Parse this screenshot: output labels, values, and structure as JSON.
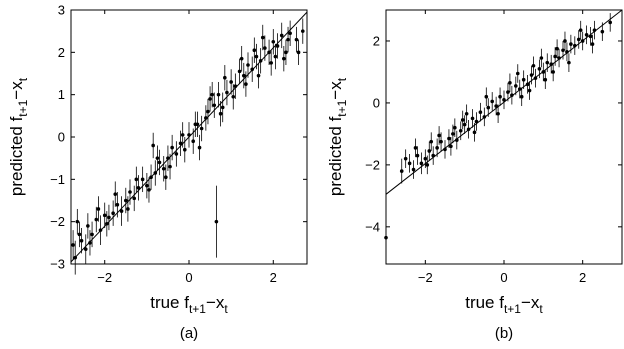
{
  "chart_data": [
    {
      "type": "scatter",
      "caption": "(a)",
      "xlabel": {
        "main": "true f",
        "sub": "t+1",
        "mid": "−x",
        "sub2": "t"
      },
      "ylabel": {
        "main": "predicted f",
        "sub": "t+1",
        "mid": "−x",
        "sub2": "t"
      },
      "xlim": [
        -2.8,
        2.8
      ],
      "ylim": [
        -3,
        3
      ],
      "xticks": [
        -2,
        0,
        2
      ],
      "xtick_labels": [
        "−2",
        "0",
        "2"
      ],
      "yticks": [
        -3,
        -2,
        -1,
        0,
        1,
        2,
        3
      ],
      "ytick_labels": [
        "−3",
        "−2",
        "−1",
        "0",
        "1",
        "2",
        "3"
      ],
      "fit_line": {
        "x": [
          -2.8,
          2.8
        ],
        "y": [
          -2.95,
          2.95
        ]
      },
      "series": [
        {
          "points": [
            [
              -2.75,
              -2.55,
              0.35
            ],
            [
              -2.7,
              -2.85,
              0.4
            ],
            [
              -2.6,
              -2.3,
              0.3
            ],
            [
              -2.55,
              -2.45,
              0.3
            ],
            [
              -2.45,
              -2.65,
              0.35
            ],
            [
              -2.4,
              -2.1,
              0.3
            ],
            [
              -2.3,
              -2.3,
              0.3
            ],
            [
              -2.2,
              -1.95,
              0.3
            ],
            [
              -2.1,
              -2.2,
              0.35
            ],
            [
              -2.0,
              -1.85,
              0.3
            ],
            [
              -1.9,
              -1.9,
              0.3
            ],
            [
              -1.8,
              -1.8,
              0.3
            ],
            [
              -1.7,
              -1.6,
              0.3
            ],
            [
              -1.6,
              -1.75,
              0.35
            ],
            [
              -1.5,
              -1.5,
              0.3
            ],
            [
              -1.4,
              -1.3,
              0.3
            ],
            [
              -1.3,
              -1.45,
              0.3
            ],
            [
              -1.2,
              -1.2,
              0.3
            ],
            [
              -1.1,
              -1.0,
              0.3
            ],
            [
              -1.0,
              -1.15,
              0.3
            ],
            [
              -0.9,
              -0.95,
              0.3
            ],
            [
              -0.8,
              -0.85,
              0.3
            ],
            [
              -0.7,
              -0.6,
              0.3
            ],
            [
              -0.6,
              -0.75,
              0.3
            ],
            [
              -0.5,
              -0.5,
              0.3
            ],
            [
              -0.4,
              -0.25,
              0.3
            ],
            [
              -0.3,
              -0.4,
              0.3
            ],
            [
              -0.2,
              -0.15,
              0.3
            ],
            [
              -0.1,
              -0.3,
              0.3
            ],
            [
              0.0,
              0.05,
              0.3
            ],
            [
              0.1,
              -0.1,
              0.3
            ],
            [
              0.2,
              0.3,
              0.3
            ],
            [
              0.3,
              0.2,
              0.3
            ],
            [
              0.4,
              0.45,
              0.3
            ],
            [
              0.5,
              0.9,
              0.3
            ],
            [
              0.6,
              0.75,
              0.3
            ],
            [
              0.7,
              1.0,
              0.3
            ],
            [
              0.8,
              0.7,
              0.35
            ],
            [
              0.9,
              1.05,
              0.3
            ],
            [
              1.0,
              1.3,
              0.3
            ],
            [
              1.1,
              1.2,
              0.3
            ],
            [
              1.2,
              1.55,
              0.3
            ],
            [
              1.3,
              1.45,
              0.3
            ],
            [
              1.4,
              1.7,
              0.3
            ],
            [
              1.5,
              1.6,
              0.3
            ],
            [
              1.6,
              1.9,
              0.3
            ],
            [
              1.7,
              1.8,
              0.3
            ],
            [
              1.8,
              2.1,
              0.3
            ],
            [
              1.9,
              2.0,
              0.3
            ],
            [
              2.0,
              2.25,
              0.3
            ],
            [
              2.1,
              2.15,
              0.3
            ],
            [
              2.2,
              2.4,
              0.3
            ],
            [
              2.3,
              2.0,
              0.3
            ],
            [
              2.4,
              2.45,
              0.3
            ],
            [
              2.55,
              2.3,
              0.3
            ],
            [
              2.7,
              2.5,
              0.3
            ],
            [
              0.65,
              -2.0,
              0.85
            ],
            [
              -2.65,
              -2.0,
              0.3
            ],
            [
              -2.35,
              -2.5,
              0.3
            ],
            [
              -2.15,
              -1.7,
              0.3
            ],
            [
              -1.95,
              -2.05,
              0.3
            ],
            [
              -1.75,
              -1.35,
              0.3
            ],
            [
              -1.45,
              -1.7,
              0.3
            ],
            [
              -1.25,
              -1.0,
              0.3
            ],
            [
              -0.95,
              -1.25,
              0.3
            ],
            [
              -0.75,
              -0.5,
              0.3
            ],
            [
              -0.45,
              -0.7,
              0.3
            ],
            [
              -0.15,
              0.05,
              0.3
            ],
            [
              0.15,
              0.3,
              0.3
            ],
            [
              0.45,
              0.6,
              0.3
            ],
            [
              0.75,
              0.55,
              0.3
            ],
            [
              1.05,
              0.95,
              0.3
            ],
            [
              1.35,
              1.25,
              0.3
            ],
            [
              1.65,
              1.45,
              0.3
            ],
            [
              1.95,
              1.75,
              0.3
            ],
            [
              2.25,
              1.85,
              0.3
            ],
            [
              2.6,
              2.0,
              0.3
            ],
            [
              -0.85,
              -0.2,
              0.3
            ],
            [
              -0.55,
              -0.95,
              0.3
            ],
            [
              0.25,
              -0.25,
              0.3
            ],
            [
              0.85,
              1.4,
              0.3
            ],
            [
              1.75,
              2.35,
              0.3
            ],
            [
              2.05,
              1.9,
              0.3
            ],
            [
              2.35,
              2.3,
              0.3
            ],
            [
              1.55,
              2.05,
              0.3
            ],
            [
              1.25,
              1.85,
              0.3
            ],
            [
              0.55,
              1.0,
              0.3
            ]
          ]
        }
      ]
    },
    {
      "type": "scatter",
      "caption": "(b)",
      "xlabel": {
        "main": "true f",
        "sub": "t+1",
        "mid": "−x",
        "sub2": "t"
      },
      "ylabel": {
        "main": "predicted f",
        "sub": "t+1",
        "mid": "−x",
        "sub2": "t"
      },
      "xlim": [
        -3,
        3
      ],
      "ylim": [
        -5.2,
        3.0
      ],
      "xticks": [
        -2,
        0,
        2
      ],
      "xtick_labels": [
        "−2",
        "0",
        "2"
      ],
      "yticks": [
        -4,
        -2,
        0,
        2
      ],
      "ytick_labels": [
        "−4",
        "−2",
        "0",
        "2"
      ],
      "fit_line": {
        "x": [
          -3,
          3
        ],
        "y": [
          -2.95,
          3.0
        ]
      },
      "series": [
        {
          "points": [
            [
              -3.0,
              -4.35,
              0.2
            ],
            [
              -2.6,
              -2.2,
              0.4
            ],
            [
              -2.4,
              -1.95,
              0.3
            ],
            [
              -2.3,
              -2.15,
              0.3
            ],
            [
              -2.2,
              -1.7,
              0.3
            ],
            [
              -2.1,
              -1.95,
              0.35
            ],
            [
              -2.0,
              -1.8,
              0.3
            ],
            [
              -1.9,
              -1.55,
              0.3
            ],
            [
              -1.8,
              -1.7,
              0.3
            ],
            [
              -1.7,
              -1.45,
              0.3
            ],
            [
              -1.6,
              -1.25,
              0.3
            ],
            [
              -1.5,
              -1.5,
              0.3
            ],
            [
              -1.4,
              -1.15,
              0.3
            ],
            [
              -1.3,
              -1.0,
              0.3
            ],
            [
              -1.2,
              -1.2,
              0.3
            ],
            [
              -1.1,
              -0.9,
              0.3
            ],
            [
              -1.0,
              -0.7,
              0.3
            ],
            [
              -0.9,
              -0.85,
              0.3
            ],
            [
              -0.8,
              -0.5,
              0.3
            ],
            [
              -0.7,
              -0.6,
              0.3
            ],
            [
              -0.6,
              -0.3,
              0.3
            ],
            [
              -0.5,
              -0.45,
              0.3
            ],
            [
              -0.4,
              -0.15,
              0.3
            ],
            [
              -0.3,
              0.05,
              0.3
            ],
            [
              -0.2,
              -0.1,
              0.3
            ],
            [
              -0.1,
              0.2,
              0.3
            ],
            [
              0.0,
              0.1,
              0.3
            ],
            [
              0.1,
              0.35,
              0.3
            ],
            [
              0.2,
              0.25,
              0.3
            ],
            [
              0.3,
              0.55,
              0.3
            ],
            [
              0.4,
              0.45,
              0.3
            ],
            [
              0.5,
              0.75,
              0.3
            ],
            [
              0.6,
              0.6,
              0.3
            ],
            [
              0.7,
              0.9,
              0.3
            ],
            [
              0.8,
              0.8,
              0.3
            ],
            [
              0.9,
              1.1,
              0.3
            ],
            [
              1.0,
              1.0,
              0.3
            ],
            [
              1.1,
              1.3,
              0.3
            ],
            [
              1.2,
              1.25,
              0.3
            ],
            [
              1.3,
              1.5,
              0.3
            ],
            [
              1.4,
              1.45,
              0.3
            ],
            [
              1.5,
              1.7,
              0.3
            ],
            [
              1.6,
              1.65,
              0.3
            ],
            [
              1.7,
              1.9,
              0.3
            ],
            [
              1.8,
              1.85,
              0.3
            ],
            [
              1.9,
              2.05,
              0.3
            ],
            [
              2.0,
              2.0,
              0.3
            ],
            [
              2.1,
              2.2,
              0.3
            ],
            [
              2.2,
              2.15,
              0.3
            ],
            [
              2.3,
              2.35,
              0.3
            ],
            [
              2.5,
              2.3,
              0.3
            ],
            [
              2.7,
              2.6,
              0.3
            ],
            [
              -2.5,
              -1.8,
              0.3
            ],
            [
              -2.25,
              -1.45,
              0.3
            ],
            [
              -1.95,
              -2.0,
              0.3
            ],
            [
              -1.65,
              -1.05,
              0.3
            ],
            [
              -1.35,
              -1.4,
              0.3
            ],
            [
              -1.05,
              -0.55,
              0.3
            ],
            [
              -0.75,
              -0.95,
              0.3
            ],
            [
              -0.45,
              0.2,
              0.3
            ],
            [
              -0.15,
              -0.35,
              0.3
            ],
            [
              0.15,
              0.65,
              0.3
            ],
            [
              0.45,
              0.2,
              0.3
            ],
            [
              0.75,
              1.2,
              0.3
            ],
            [
              1.05,
              0.75,
              0.3
            ],
            [
              1.35,
              1.75,
              0.3
            ],
            [
              1.65,
              1.3,
              0.3
            ],
            [
              1.95,
              2.35,
              0.3
            ],
            [
              2.25,
              1.9,
              0.3
            ],
            [
              0.95,
              1.45,
              0.3
            ],
            [
              1.25,
              1.0,
              0.3
            ],
            [
              1.55,
              2.0,
              0.3
            ],
            [
              -0.95,
              -0.35,
              0.3
            ],
            [
              -1.25,
              -0.8,
              0.3
            ],
            [
              -1.85,
              -1.25,
              0.3
            ],
            [
              0.35,
              0.95,
              0.3
            ],
            [
              0.65,
              0.4,
              0.3
            ]
          ]
        }
      ]
    }
  ]
}
